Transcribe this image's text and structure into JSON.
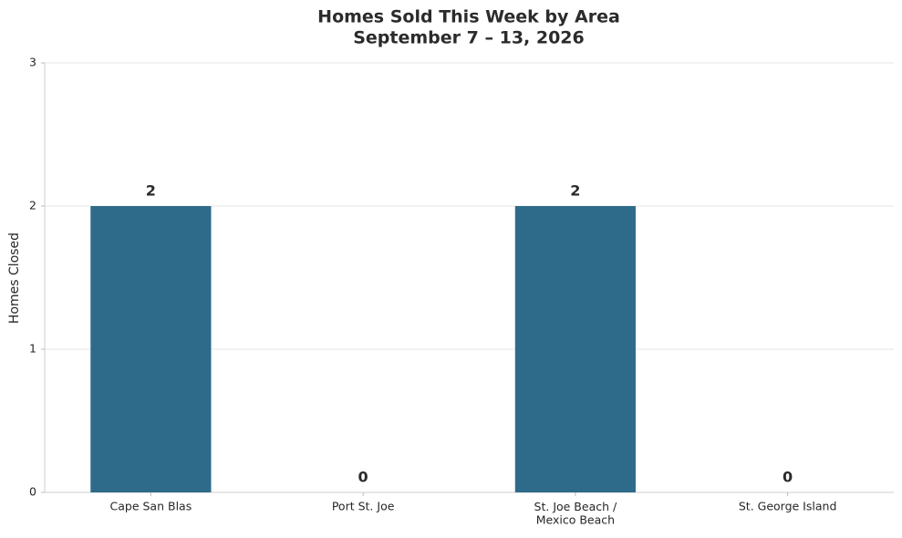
{
  "chart_data": {
    "type": "bar",
    "title": "Homes Sold This Week by Area",
    "subtitle": "September 7 – 13, 2026",
    "y_label": "Homes Closed",
    "categories": [
      "Cape San Blas",
      "Port St. Joe",
      "St. Joe Beach /\nMexico Beach",
      "St. George Island"
    ],
    "values": [
      2,
      0,
      2,
      0
    ],
    "color": "#2e6b8a",
    "ylim": [
      0,
      3
    ],
    "yticks": [
      0,
      1,
      2,
      3
    ],
    "grid": true
  }
}
